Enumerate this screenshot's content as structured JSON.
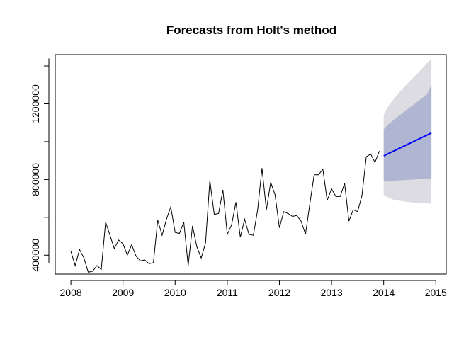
{
  "chart_data": {
    "type": "line",
    "title": "Forecasts from Holt's method",
    "xlabel": "",
    "ylabel": "",
    "xlim": [
      2007.7,
      2015.2
    ],
    "ylim": [
      300000,
      1460000
    ],
    "x_ticks": [
      2008,
      2009,
      2010,
      2011,
      2012,
      2013,
      2014,
      2015
    ],
    "x_tick_labels": [
      "2008",
      "2009",
      "2010",
      "2011",
      "2012",
      "2013",
      "2014",
      "2015"
    ],
    "y_ticks": [
      400000,
      800000,
      1200000
    ],
    "y_tick_labels": [
      "400000",
      "800000",
      "1200000"
    ],
    "grid": false,
    "colors": {
      "observed": "#000000",
      "forecast": "#0000ff",
      "band80": "#b0b5d2",
      "band95": "#dcdce2"
    },
    "observed": {
      "start": 2008.0,
      "frequency": 12,
      "values": [
        420000,
        345000,
        430000,
        385000,
        310000,
        315000,
        345000,
        325000,
        575000,
        505000,
        435000,
        480000,
        460000,
        400000,
        455000,
        395000,
        370000,
        375000,
        355000,
        360000,
        585000,
        505000,
        590000,
        655000,
        520000,
        515000,
        575000,
        345000,
        555000,
        445000,
        385000,
        465000,
        795000,
        615000,
        620000,
        745000,
        510000,
        560000,
        680000,
        495000,
        590000,
        510000,
        505000,
        640000,
        860000,
        640000,
        785000,
        720000,
        545000,
        630000,
        620000,
        605000,
        610000,
        580000,
        510000,
        670000,
        825000,
        825000,
        855000,
        690000,
        750000,
        710000,
        710000,
        780000,
        580000,
        640000,
        630000,
        715000,
        920000,
        935000,
        890000,
        950000
      ]
    },
    "forecast": {
      "start": 2014.0,
      "frequency": 12,
      "mean": [
        925000,
        936000,
        947000,
        958000,
        969000,
        980000,
        991000,
        1002000,
        1013000,
        1024000,
        1035000,
        1046000
      ],
      "lo80": [
        790000,
        790000,
        792000,
        794000,
        796000,
        797000,
        799000,
        800000,
        802000,
        803000,
        805000,
        806000
      ],
      "hi80": [
        1065000,
        1090000,
        1108000,
        1128000,
        1145000,
        1163000,
        1180000,
        1197000,
        1215000,
        1233000,
        1252000,
        1300000
      ],
      "lo95": [
        720000,
        705000,
        695000,
        690000,
        686000,
        683000,
        680000,
        678000,
        676000,
        675000,
        674000,
        672000
      ],
      "hi95": [
        1140000,
        1185000,
        1215000,
        1245000,
        1270000,
        1295000,
        1318000,
        1343000,
        1365000,
        1390000,
        1415000,
        1440000
      ]
    }
  }
}
